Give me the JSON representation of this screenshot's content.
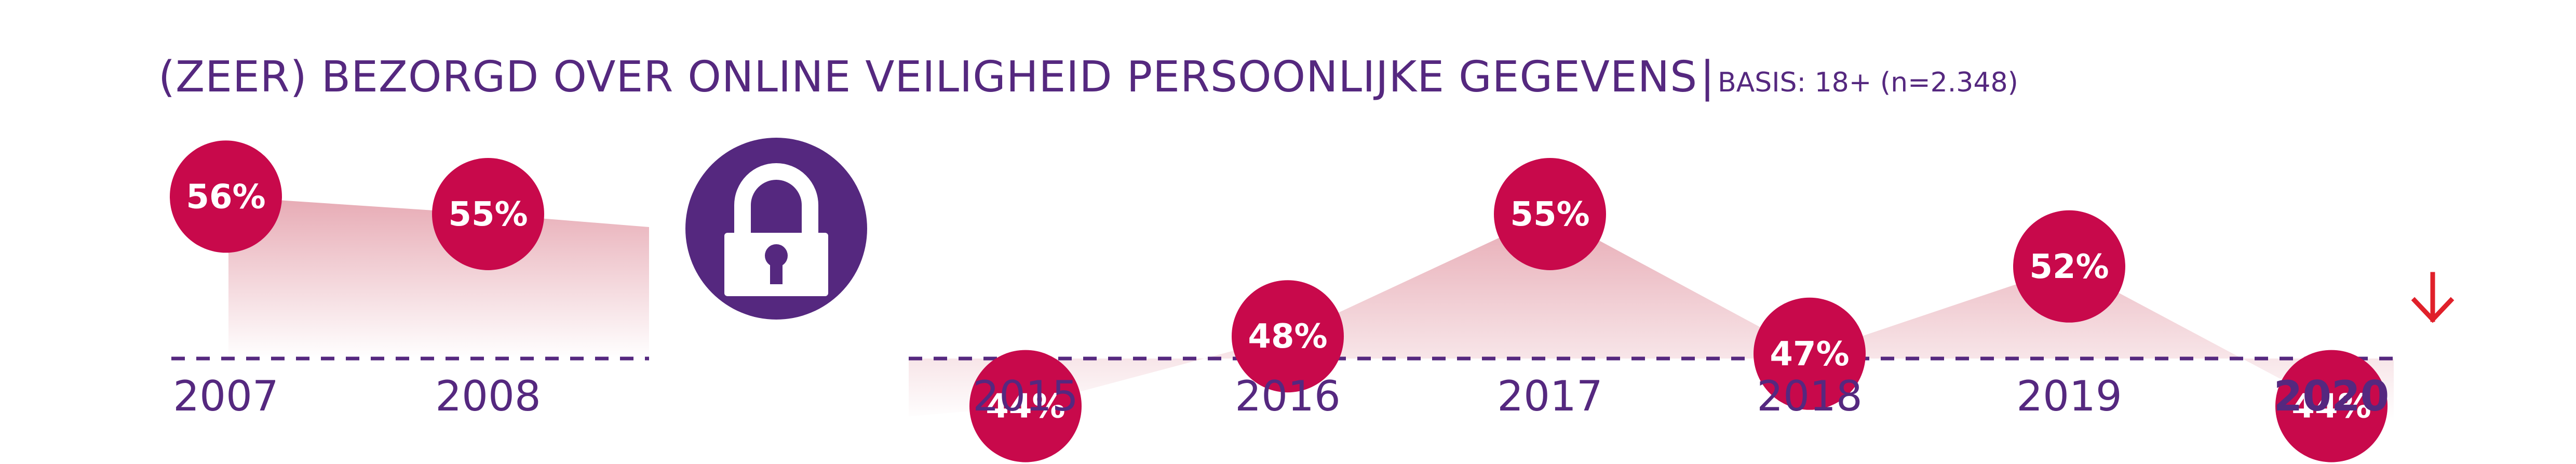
{
  "colors": {
    "title": "#55287f",
    "bubble": "#c8094b",
    "area_top": "#e7aab4",
    "area_bottom": "#ffffff",
    "axis": "#55287f",
    "lock_circle": "#55287f",
    "trend_arrow": "#e0202a"
  },
  "header": {
    "title": "(ZEER) BEZORGD OVER ONLINE VEILIGHEID PERSOONLIJKE GEGEVENS",
    "separator": "|",
    "base": "BASIS: 18+ (n=2.348)"
  },
  "icons": {
    "lock": "padlock-icon",
    "trend": "arrow-down-icon"
  },
  "chart_data": [
    {
      "type": "area",
      "title": "(ZEER) BEZORGD OVER ONLINE VEILIGHEID PERSOONLIJKE GEGEVENS",
      "subtitle": "BASIS: 18+ (n=2.348)",
      "categories": [
        "2007",
        "2008"
      ],
      "values": [
        56,
        55
      ],
      "labels": [
        "56%",
        "55%"
      ],
      "unit": "%"
    },
    {
      "type": "area",
      "categories": [
        "2015",
        "2016",
        "2017",
        "2018",
        "2019",
        "2020"
      ],
      "values": [
        44,
        48,
        55,
        47,
        52,
        44
      ],
      "labels": [
        "44%",
        "48%",
        "55%",
        "47%",
        "52%",
        "44%"
      ],
      "unit": "%",
      "highlight": "2020",
      "trend": "down"
    }
  ]
}
